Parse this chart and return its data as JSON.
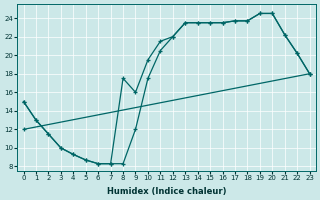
{
  "xlabel": "Humidex (Indice chaleur)",
  "bg_color": "#cce8e8",
  "line_color": "#006666",
  "xlim": [
    -0.5,
    23.5
  ],
  "ylim": [
    7.5,
    25.5
  ],
  "xticks": [
    0,
    1,
    2,
    3,
    4,
    5,
    6,
    7,
    8,
    9,
    10,
    11,
    12,
    13,
    14,
    15,
    16,
    17,
    18,
    19,
    20,
    21,
    22,
    23
  ],
  "yticks": [
    8,
    10,
    12,
    14,
    16,
    18,
    20,
    22,
    24
  ],
  "line1_x": [
    0,
    1,
    2,
    3,
    4,
    5,
    6,
    7,
    8,
    9,
    10,
    11,
    12,
    13,
    14,
    15,
    16,
    17,
    18,
    19,
    20,
    21,
    22,
    23
  ],
  "line1_y": [
    15,
    13,
    11.5,
    10,
    9.3,
    8.7,
    8.3,
    8.3,
    8.3,
    12.0,
    17.5,
    20.5,
    22.0,
    23.5,
    23.5,
    23.5,
    23.5,
    23.7,
    23.7,
    24.5,
    24.5,
    22.2,
    20.2,
    18.0
  ],
  "line2_x": [
    0,
    1,
    2,
    3,
    4,
    5,
    6,
    7,
    8,
    9,
    10,
    11,
    12,
    13,
    14,
    15,
    16,
    17,
    18,
    19,
    20,
    21,
    22,
    23
  ],
  "line2_y": [
    15,
    13,
    11.5,
    10,
    9.3,
    8.7,
    8.3,
    8.3,
    17.5,
    16.0,
    19.5,
    21.5,
    22.0,
    23.5,
    23.5,
    23.5,
    23.5,
    23.7,
    23.7,
    24.5,
    24.5,
    22.2,
    20.2,
    18.0
  ],
  "line3_x": [
    0,
    23
  ],
  "line3_y": [
    12,
    18
  ]
}
